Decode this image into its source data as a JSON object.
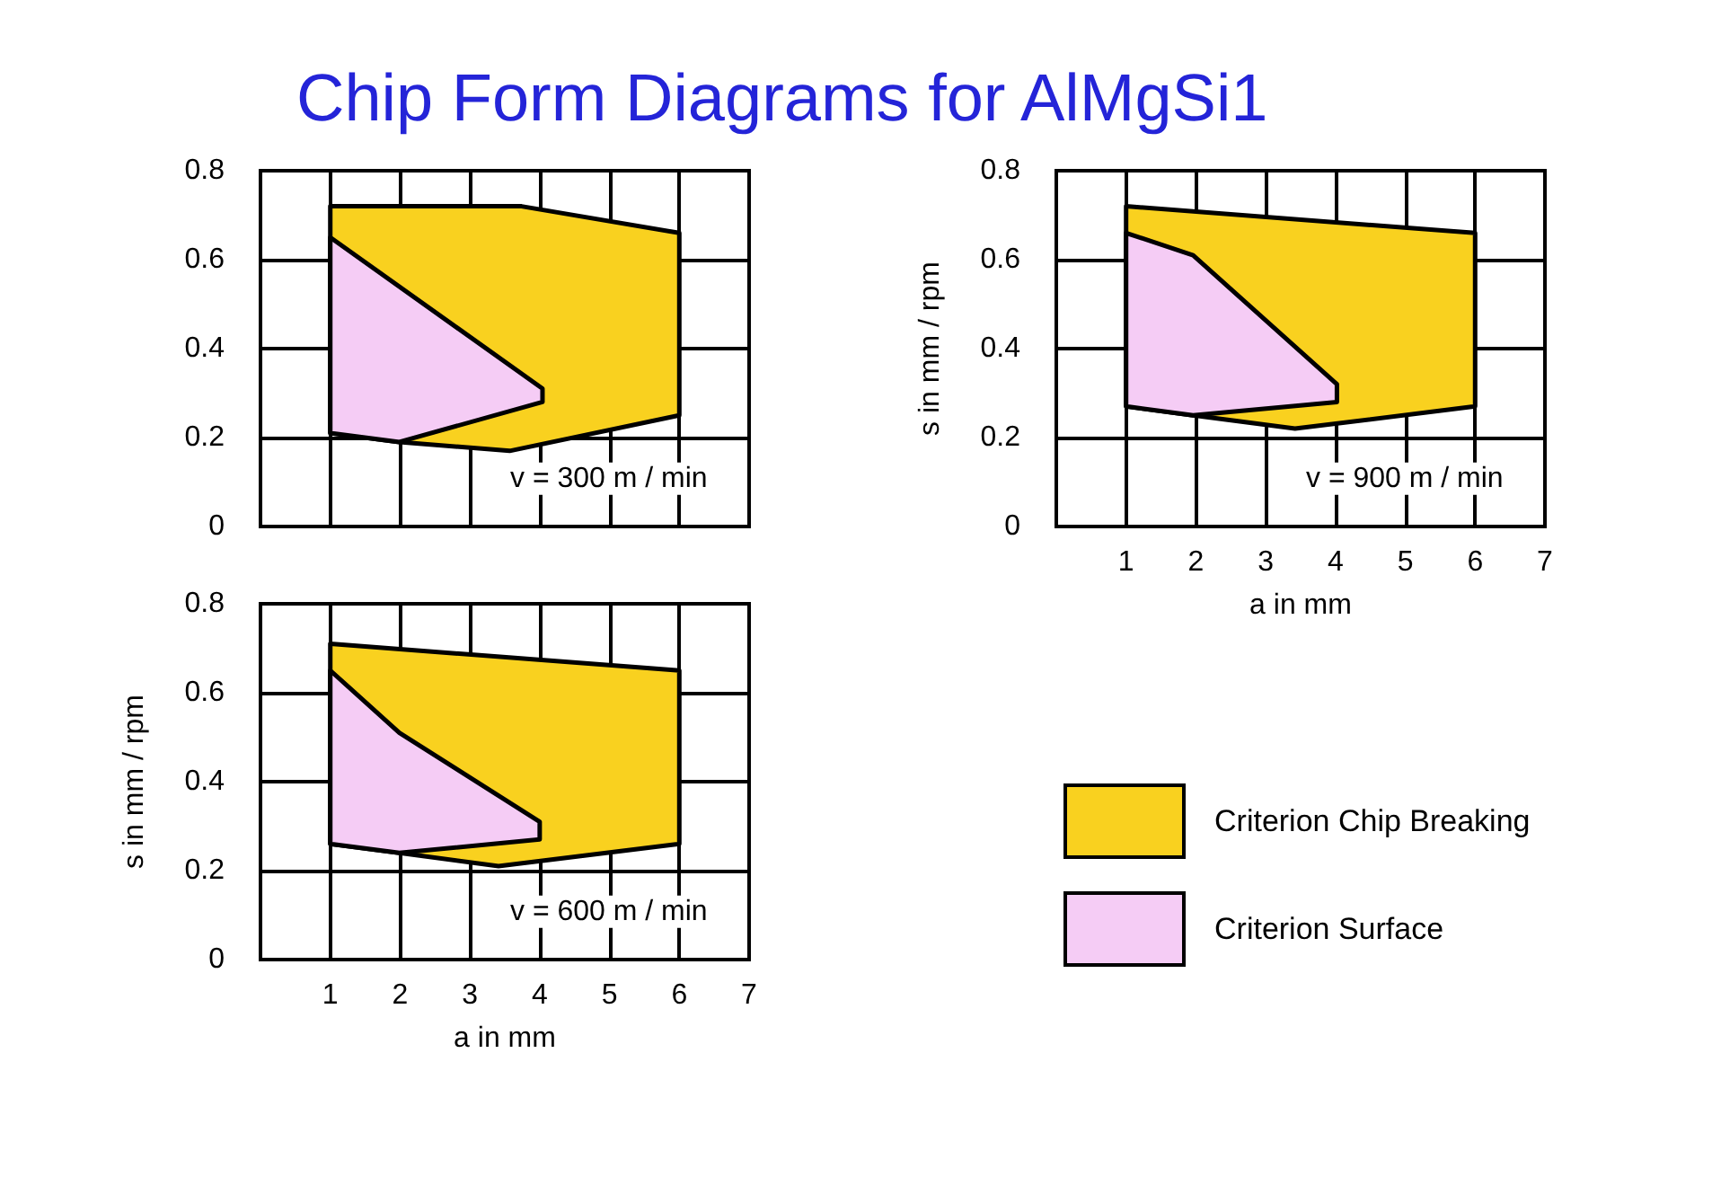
{
  "chart_data": [
    {
      "type": "area",
      "title": "Chip Form Diagrams for AlMgSi1",
      "xlim": [
        0,
        7
      ],
      "xticks": [
        1,
        2,
        3,
        4,
        5,
        6,
        7
      ],
      "ylim": [
        0,
        0.8
      ],
      "yticks": [
        0,
        0.2,
        0.4,
        0.6,
        0.8
      ],
      "grid": true,
      "legend": false,
      "tick_labels": "y",
      "annotations": [
        "v = 300 m / min"
      ],
      "series": [
        {
          "color": "#f9d11f",
          "x": [
            1,
            3.74,
            6,
            6,
            3.57,
            1.99,
            1,
            1
          ],
          "values": [
            0.72,
            0.72,
            0.66,
            0.25,
            0.17,
            0.19,
            0.21,
            0.72
          ]
        },
        {
          "color": "#f5ccf5",
          "x": [
            1,
            4.04,
            4.04,
            1.99,
            1,
            1
          ],
          "values": [
            0.65,
            0.31,
            0.28,
            0.19,
            0.21,
            0.65
          ]
        }
      ]
    },
    {
      "type": "area",
      "xlabel": "a in mm",
      "ylabel": "s in mm / rpm",
      "xlim": [
        0,
        7
      ],
      "xticks": [
        1,
        2,
        3,
        4,
        5,
        6,
        7
      ],
      "ylim": [
        0,
        0.8
      ],
      "yticks": [
        0,
        0.2,
        0.4,
        0.6,
        0.8
      ],
      "grid": true,
      "legend": false,
      "annotations": [
        "v = 900 m / min"
      ],
      "series": [
        {
          "color": "#f9d11f",
          "x": [
            1,
            6,
            6,
            3.42,
            1.96,
            1,
            1
          ],
          "values": [
            0.72,
            0.66,
            0.27,
            0.22,
            0.25,
            0.27,
            0.72
          ]
        },
        {
          "color": "#f5ccf5",
          "x": [
            1,
            1.96,
            4.02,
            4.02,
            1.96,
            1,
            1
          ],
          "values": [
            0.66,
            0.61,
            0.32,
            0.28,
            0.25,
            0.27,
            0.66
          ]
        }
      ]
    },
    {
      "type": "area",
      "xlabel": "a in mm",
      "ylabel": "s in mm / rpm",
      "xlim": [
        0,
        7
      ],
      "xticks": [
        1,
        2,
        3,
        4,
        5,
        6,
        7
      ],
      "ylim": [
        0,
        0.8
      ],
      "yticks": [
        0,
        0.2,
        0.4,
        0.6,
        0.8
      ],
      "grid": true,
      "legend": "right",
      "annotations": [
        "v = 600 m / min"
      ],
      "series": [
        {
          "name": "Criterion Chip Breaking",
          "color": "#f9d11f",
          "x": [
            1,
            6,
            6,
            3.41,
            1.99,
            1,
            1
          ],
          "values": [
            0.71,
            0.65,
            0.26,
            0.21,
            0.24,
            0.26,
            0.71
          ]
        },
        {
          "name": "Criterion Surface",
          "color": "#f5ccf5",
          "x": [
            1,
            1.99,
            4,
            4,
            1.99,
            1,
            1
          ],
          "values": [
            0.65,
            0.51,
            0.31,
            0.27,
            0.24,
            0.26,
            0.65
          ]
        }
      ]
    }
  ]
}
